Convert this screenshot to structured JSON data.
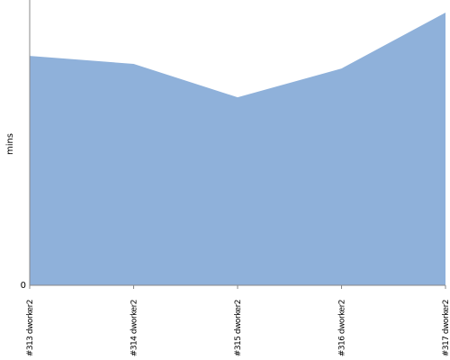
{
  "chart_data": {
    "type": "area",
    "y_label": "mins",
    "categories": [
      "#313 dworker2",
      "#314 dworker2",
      "#315 dworker2",
      "#316 dworker2",
      "#317 dworker2"
    ],
    "values": [
      8.04,
      7.76,
      6.59,
      7.6,
      9.56
    ],
    "color": "#8fb1da",
    "ylim": [
      0,
      10
    ],
    "yticks": [
      0
    ]
  }
}
